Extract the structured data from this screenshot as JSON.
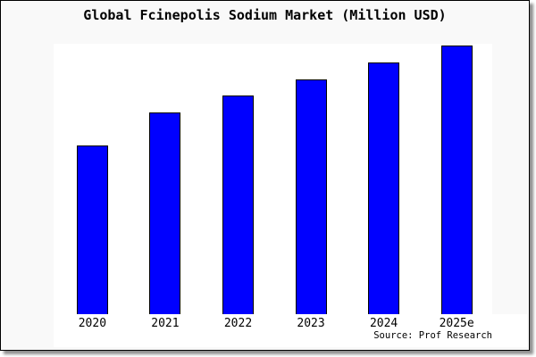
{
  "chart_data": {
    "type": "bar",
    "title": "Global Fcinepolis Sodium Market (Million USD)",
    "categories": [
      "2020",
      "2021",
      "2022",
      "2023",
      "2024",
      "2025e"
    ],
    "values": [
      62.8,
      75.1,
      81.4,
      87.4,
      93.7,
      100
    ],
    "value_scale_note": "no y-axis shown; values are relative index with 2025e = 100",
    "xlabel": "",
    "ylabel": "",
    "grid": false,
    "legend": false,
    "source": "Source: Prof Research",
    "bar_fill_color": "#0000ff",
    "bar_border_color": "#000000",
    "figure_background": "#f9f9f9",
    "plot_background": "#ffffff",
    "axis_color": "#000000"
  }
}
